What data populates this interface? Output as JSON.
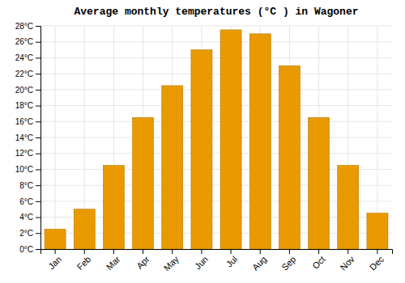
{
  "chart_data": {
    "type": "bar",
    "title": "Average monthly temperatures (°C ) in Wagoner",
    "categories": [
      "Jan",
      "Feb",
      "Mar",
      "Apr",
      "May",
      "Jun",
      "Jul",
      "Aug",
      "Sep",
      "Oct",
      "Nov",
      "Dec"
    ],
    "values": [
      2.5,
      5.0,
      10.5,
      16.5,
      20.5,
      25.0,
      27.5,
      27.0,
      23.0,
      16.5,
      10.5,
      4.5
    ],
    "color": "#E89A00",
    "ylim": [
      0,
      28
    ],
    "yticks": [
      {
        "value": 0,
        "label": "0°C"
      },
      {
        "value": 2,
        "label": "2°C"
      },
      {
        "value": 4,
        "label": "4°C"
      },
      {
        "value": 6,
        "label": "6°C"
      },
      {
        "value": 8,
        "label": "8°C"
      },
      {
        "value": 10,
        "label": "10°C"
      },
      {
        "value": 12,
        "label": "12°C"
      },
      {
        "value": 14,
        "label": "14°C"
      },
      {
        "value": 16,
        "label": "16°C"
      },
      {
        "value": 18,
        "label": "18°C"
      },
      {
        "value": 20,
        "label": "20°C"
      },
      {
        "value": 22,
        "label": "22°C"
      },
      {
        "value": 24,
        "label": "24°C"
      },
      {
        "value": 26,
        "label": "26°C"
      },
      {
        "value": 28,
        "label": "28°C"
      }
    ],
    "grid": true
  }
}
